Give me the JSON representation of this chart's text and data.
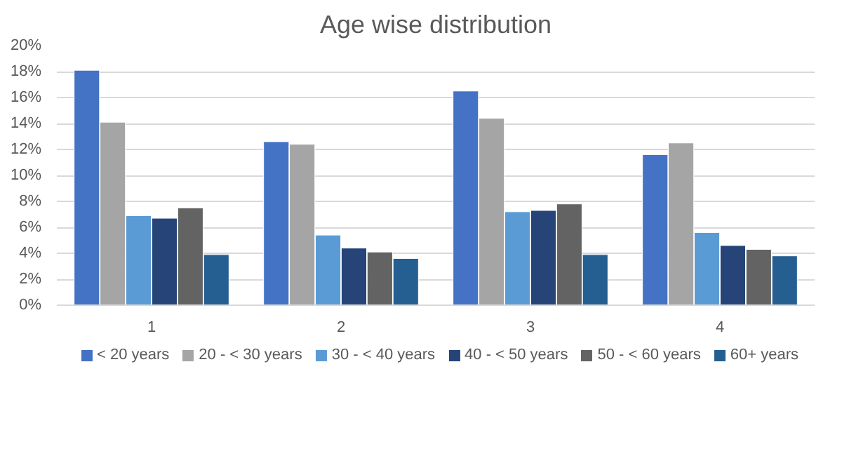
{
  "chart_data": {
    "type": "bar",
    "title": "Age wise distribution",
    "categories": [
      "1",
      "2",
      "3",
      "4"
    ],
    "series": [
      {
        "name": "< 20 years",
        "color": "#4472c4",
        "values": [
          18.1,
          12.6,
          16.5,
          11.6
        ]
      },
      {
        "name": "20 - < 30 years",
        "color": "#a5a5a5",
        "values": [
          14.1,
          12.4,
          14.4,
          12.5
        ]
      },
      {
        "name": "30 - < 40 years",
        "color": "#5b9bd5",
        "values": [
          6.9,
          5.4,
          7.2,
          5.6
        ]
      },
      {
        "name": "40 - < 50 years",
        "color": "#264478",
        "values": [
          6.7,
          4.4,
          7.3,
          4.6
        ]
      },
      {
        "name": "50 - < 60 years",
        "color": "#636363",
        "values": [
          7.5,
          4.1,
          7.8,
          4.3
        ]
      },
      {
        "name": "60+ years",
        "color": "#255e91",
        "values": [
          3.9,
          3.6,
          3.9,
          3.8
        ]
      }
    ],
    "ylim": [
      0,
      20
    ],
    "yticks": [
      {
        "value": 0,
        "label": "0%"
      },
      {
        "value": 2,
        "label": "2%"
      },
      {
        "value": 4,
        "label": "4%"
      },
      {
        "value": 6,
        "label": "6%"
      },
      {
        "value": 8,
        "label": "8%"
      },
      {
        "value": 10,
        "label": "10%"
      },
      {
        "value": 12,
        "label": "12%"
      },
      {
        "value": 14,
        "label": "14%"
      },
      {
        "value": 16,
        "label": "16%"
      },
      {
        "value": 18,
        "label": "18%"
      },
      {
        "value": 20,
        "label": "20%"
      }
    ],
    "grid": "y",
    "legend": "bottom"
  }
}
